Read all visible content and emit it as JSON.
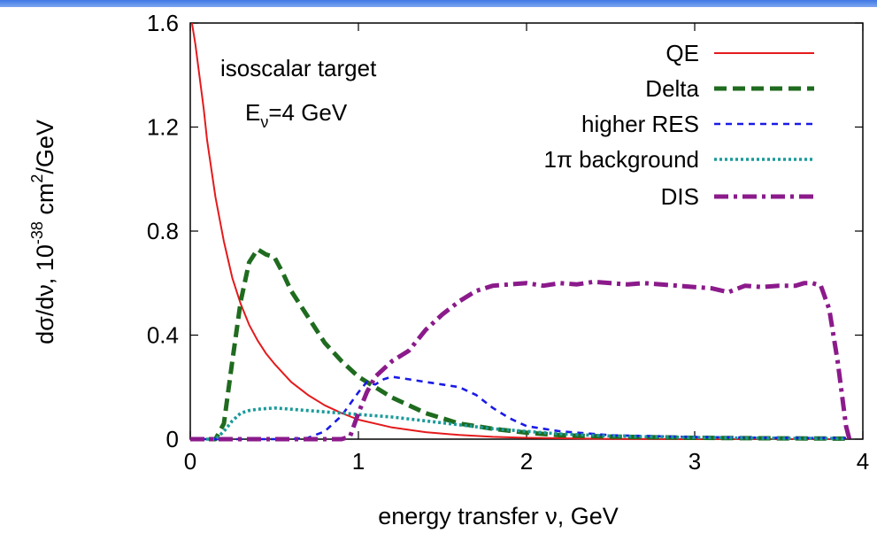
{
  "chart_data": {
    "type": "line",
    "title": "",
    "xlabel": "energy transfer  ν, GeV",
    "ylabel": {
      "main": "dσ/dν,  10",
      "sup": "-38",
      "rest": " cm",
      "sup2": "2",
      "tail": "/GeV"
    },
    "xlim": [
      0,
      4
    ],
    "ylim": [
      0,
      1.6
    ],
    "xticks": [
      0,
      1,
      2,
      3,
      4
    ],
    "xtick_labels": [
      "0",
      "1",
      "2",
      "3",
      "4"
    ],
    "yticks": [
      0,
      0.4,
      0.8,
      1.2,
      1.6
    ],
    "ytick_labels": [
      "0",
      "0.4",
      "0.8",
      "1.2",
      "1.6"
    ],
    "grid": false,
    "legend_position": "top-right",
    "annotations": {
      "line1": "isoscalar target",
      "line2_main": "E",
      "line2_sub": "ν",
      "line2_rest": "=4 GeV"
    },
    "series": [
      {
        "name": "QE",
        "color": "#e41a1c",
        "dash": "solid",
        "points": [
          [
            0.01,
            1.62
          ],
          [
            0.03,
            1.52
          ],
          [
            0.05,
            1.42
          ],
          [
            0.08,
            1.27
          ],
          [
            0.1,
            1.15
          ],
          [
            0.15,
            0.93
          ],
          [
            0.2,
            0.76
          ],
          [
            0.25,
            0.62
          ],
          [
            0.3,
            0.52
          ],
          [
            0.35,
            0.44
          ],
          [
            0.4,
            0.38
          ],
          [
            0.45,
            0.33
          ],
          [
            0.5,
            0.29
          ],
          [
            0.6,
            0.22
          ],
          [
            0.7,
            0.17
          ],
          [
            0.8,
            0.13
          ],
          [
            0.9,
            0.1
          ],
          [
            1.0,
            0.075
          ],
          [
            1.2,
            0.045
          ],
          [
            1.4,
            0.027
          ],
          [
            1.6,
            0.016
          ],
          [
            1.8,
            0.009
          ],
          [
            2.0,
            0.005
          ],
          [
            2.5,
            0.001
          ],
          [
            3.0,
            0.0
          ],
          [
            3.9,
            0.0
          ]
        ]
      },
      {
        "name": "Delta",
        "color": "#1f6b1f",
        "dash": "long",
        "points": [
          [
            0.0,
            0.0
          ],
          [
            0.15,
            0.0
          ],
          [
            0.2,
            0.06
          ],
          [
            0.25,
            0.3
          ],
          [
            0.3,
            0.53
          ],
          [
            0.35,
            0.68
          ],
          [
            0.4,
            0.73
          ],
          [
            0.45,
            0.71
          ],
          [
            0.5,
            0.7
          ],
          [
            0.55,
            0.64
          ],
          [
            0.6,
            0.57
          ],
          [
            0.7,
            0.47
          ],
          [
            0.8,
            0.37
          ],
          [
            0.9,
            0.3
          ],
          [
            1.0,
            0.24
          ],
          [
            1.1,
            0.2
          ],
          [
            1.2,
            0.16
          ],
          [
            1.3,
            0.13
          ],
          [
            1.4,
            0.1
          ],
          [
            1.5,
            0.08
          ],
          [
            1.6,
            0.06
          ],
          [
            1.8,
            0.04
          ],
          [
            2.0,
            0.025
          ],
          [
            2.2,
            0.015
          ],
          [
            2.5,
            0.01
          ],
          [
            3.0,
            0.005
          ],
          [
            3.5,
            0.003
          ],
          [
            3.9,
            0.002
          ]
        ]
      },
      {
        "name": "higher RES",
        "color": "#1a1ae6",
        "dash": "short",
        "points": [
          [
            0.0,
            0.0
          ],
          [
            0.6,
            0.0
          ],
          [
            0.7,
            0.005
          ],
          [
            0.8,
            0.03
          ],
          [
            0.9,
            0.09
          ],
          [
            1.0,
            0.18
          ],
          [
            1.05,
            0.22
          ],
          [
            1.1,
            0.21
          ],
          [
            1.15,
            0.23
          ],
          [
            1.2,
            0.24
          ],
          [
            1.3,
            0.23
          ],
          [
            1.4,
            0.22
          ],
          [
            1.5,
            0.21
          ],
          [
            1.6,
            0.2
          ],
          [
            1.7,
            0.17
          ],
          [
            1.8,
            0.12
          ],
          [
            1.9,
            0.08
          ],
          [
            2.0,
            0.05
          ],
          [
            2.2,
            0.03
          ],
          [
            2.5,
            0.015
          ],
          [
            3.0,
            0.008
          ],
          [
            3.5,
            0.005
          ],
          [
            3.9,
            0.004
          ]
        ]
      },
      {
        "name": "1π background",
        "color": "#1a9a9a",
        "dash": "dotted",
        "points": [
          [
            0.0,
            0.0
          ],
          [
            0.15,
            0.0
          ],
          [
            0.2,
            0.03
          ],
          [
            0.25,
            0.07
          ],
          [
            0.3,
            0.1
          ],
          [
            0.35,
            0.11
          ],
          [
            0.4,
            0.115
          ],
          [
            0.5,
            0.12
          ],
          [
            0.6,
            0.115
          ],
          [
            0.7,
            0.11
          ],
          [
            0.8,
            0.105
          ],
          [
            0.9,
            0.1
          ],
          [
            1.0,
            0.095
          ],
          [
            1.2,
            0.085
          ],
          [
            1.4,
            0.07
          ],
          [
            1.6,
            0.055
          ],
          [
            1.8,
            0.04
          ],
          [
            2.0,
            0.03
          ],
          [
            2.2,
            0.02
          ],
          [
            2.5,
            0.012
          ],
          [
            3.0,
            0.006
          ],
          [
            3.5,
            0.003
          ],
          [
            3.9,
            0.002
          ]
        ]
      },
      {
        "name": "DIS",
        "color": "#8b1a8b",
        "dash": "dashdot",
        "points": [
          [
            0.0,
            0.0
          ],
          [
            0.9,
            0.0
          ],
          [
            0.95,
            0.01
          ],
          [
            1.0,
            0.1
          ],
          [
            1.05,
            0.18
          ],
          [
            1.1,
            0.24
          ],
          [
            1.2,
            0.3
          ],
          [
            1.3,
            0.34
          ],
          [
            1.4,
            0.42
          ],
          [
            1.5,
            0.48
          ],
          [
            1.6,
            0.53
          ],
          [
            1.7,
            0.57
          ],
          [
            1.8,
            0.59
          ],
          [
            1.9,
            0.595
          ],
          [
            2.0,
            0.6
          ],
          [
            2.1,
            0.59
          ],
          [
            2.2,
            0.6
          ],
          [
            2.3,
            0.595
          ],
          [
            2.4,
            0.605
          ],
          [
            2.5,
            0.6
          ],
          [
            2.6,
            0.595
          ],
          [
            2.7,
            0.6
          ],
          [
            2.8,
            0.595
          ],
          [
            2.9,
            0.59
          ],
          [
            3.0,
            0.585
          ],
          [
            3.1,
            0.58
          ],
          [
            3.2,
            0.565
          ],
          [
            3.3,
            0.59
          ],
          [
            3.4,
            0.585
          ],
          [
            3.5,
            0.59
          ],
          [
            3.6,
            0.59
          ],
          [
            3.65,
            0.6
          ],
          [
            3.7,
            0.6
          ],
          [
            3.75,
            0.59
          ],
          [
            3.8,
            0.5
          ],
          [
            3.85,
            0.3
          ],
          [
            3.88,
            0.15
          ],
          [
            3.9,
            0.05
          ],
          [
            3.92,
            0.0
          ]
        ]
      }
    ]
  }
}
